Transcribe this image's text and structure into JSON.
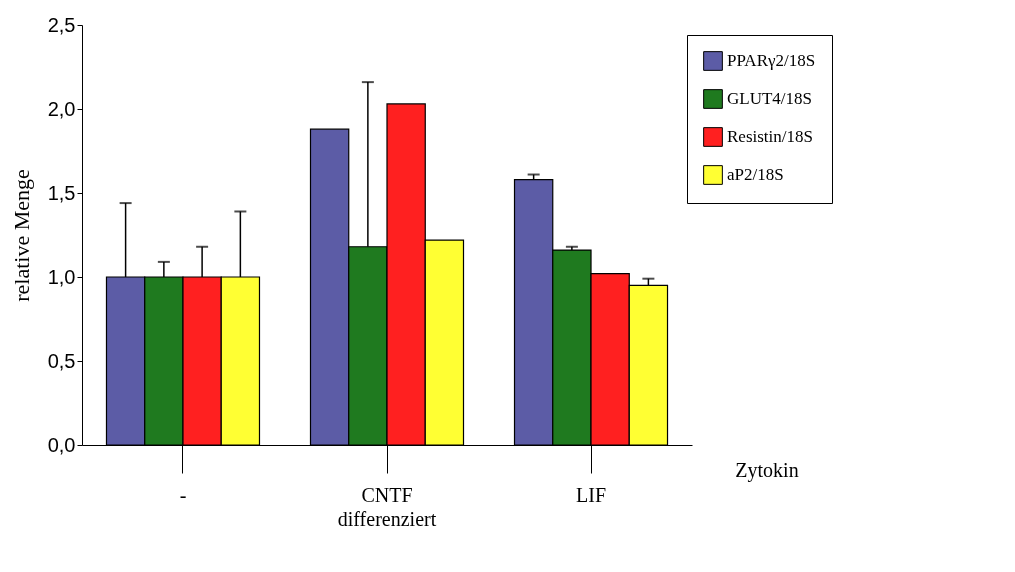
{
  "chart_data": {
    "type": "bar",
    "ylabel": "relative Menge",
    "categories": [
      "-",
      "CNTF",
      "LIF"
    ],
    "series": [
      {
        "name": "PPARγ2/18S",
        "color": "#5c5ca6",
        "values": [
          1.0,
          1.88,
          1.58
        ],
        "errors": [
          [
            1.0,
            1.44
          ],
          null,
          [
            1.58,
            1.61
          ]
        ]
      },
      {
        "name": "GLUT4/18S",
        "color": "#1f7a1f",
        "values": [
          1.0,
          1.18,
          1.16
        ],
        "errors": [
          [
            1.0,
            1.09
          ],
          [
            1.18,
            2.16
          ],
          [
            1.16,
            1.18
          ]
        ]
      },
      {
        "name": "Resistin/18S",
        "color": "#ff2020",
        "values": [
          1.0,
          2.03,
          1.02
        ],
        "errors": [
          [
            1.0,
            1.18
          ],
          null,
          null
        ]
      },
      {
        "name": "aP2/18S",
        "color": "#ffff33",
        "values": [
          1.0,
          1.22,
          0.95
        ],
        "errors": [
          [
            1.0,
            1.39
          ],
          null,
          [
            0.95,
            0.99
          ]
        ]
      }
    ],
    "ylim": [
      0,
      2.5
    ],
    "yticks": [
      {
        "value": 0,
        "label": "0,0"
      },
      {
        "value": 0.5,
        "label": "0,5"
      },
      {
        "value": 1.0,
        "label": "1,0"
      },
      {
        "value": 1.5,
        "label": "1,5"
      },
      {
        "value": 2.0,
        "label": "2,0"
      },
      {
        "value": 2.5,
        "label": "2,5"
      }
    ],
    "annotations": [
      "Zytokin",
      "differenziert"
    ],
    "legend": "top right",
    "grid": false
  }
}
